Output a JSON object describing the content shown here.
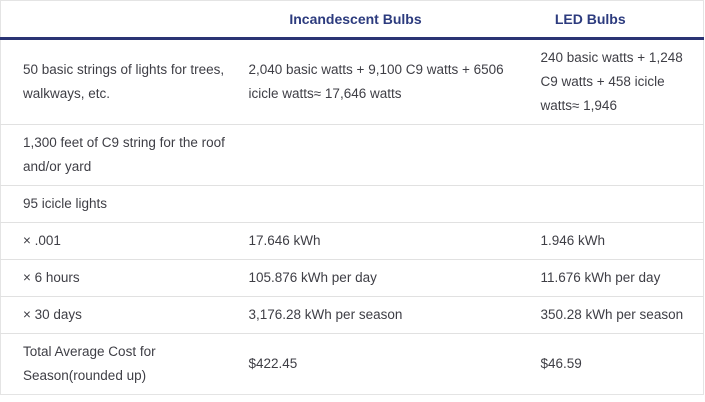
{
  "table": {
    "columns": [
      {
        "label": ""
      },
      {
        "label": "Incandescent Bulbs"
      },
      {
        "label": "LED Bulbs"
      }
    ],
    "rows": [
      {
        "label": "50 basic strings of lights for trees, walkways, etc.",
        "incandescent": "2,040 basic watts + 9,100 C9 watts + 6506 icicle watts≈ 17,646 watts",
        "led": "240 basic watts + 1,248 C9 watts + 458 icicle watts≈ 1,946"
      },
      {
        "label": "1,300 feet of C9 string for the roof and/or yard",
        "incandescent": "",
        "led": ""
      },
      {
        "label": "95 icicle lights",
        "incandescent": "",
        "led": ""
      },
      {
        "label": "× .001",
        "incandescent": "17.646 kWh",
        "led": "1.946 kWh"
      },
      {
        "label": "× 6 hours",
        "incandescent": "105.876 kWh per day",
        "led": "11.676 kWh per day"
      },
      {
        "label": "× 30 days",
        "incandescent": "3,176.28 kWh per season",
        "led": "350.28 kWh per season"
      },
      {
        "label": "Total Average Cost for Season(rounded up)",
        "incandescent": "$422.45",
        "led": "$46.59"
      }
    ]
  },
  "colors": {
    "header_text": "#2c3b7e",
    "header_underline": "#2a3474",
    "body_text": "#3e3e45",
    "row_divider": "#e1e1e1",
    "outer_border": "#e4e4e4",
    "background": "#ffffff"
  }
}
